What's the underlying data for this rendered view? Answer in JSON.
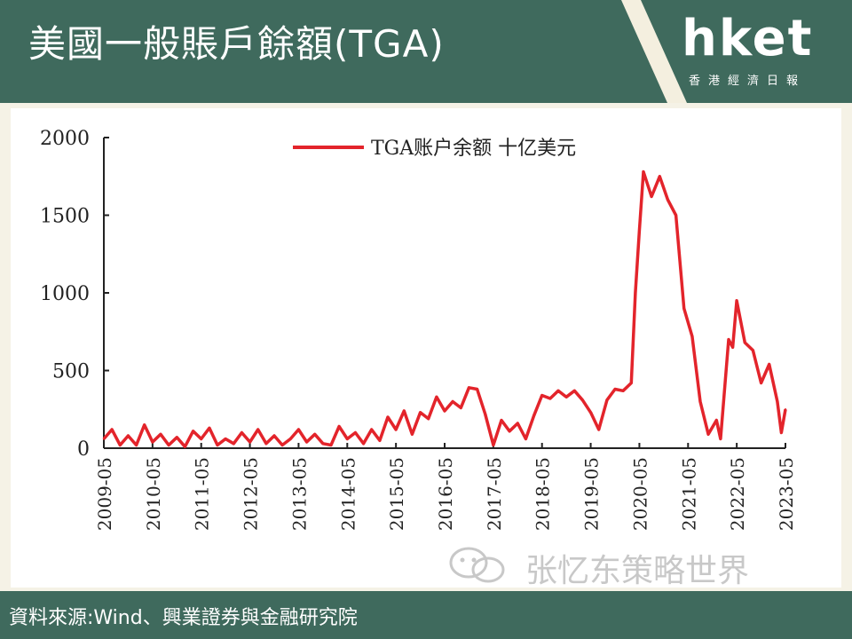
{
  "header": {
    "title": "美國一般賬戶餘額(TGA)",
    "logo_text": "hket",
    "logo_sub": "香港經濟日報",
    "bg_color": "#3f6a5d",
    "accent_color": "#f4efdf"
  },
  "footer": {
    "source": "資料來源:Wind、興業證券與金融研究院"
  },
  "watermark": {
    "text": "张忆东策略世界",
    "icon": "wechat-icon"
  },
  "chart_data": {
    "type": "line",
    "title": "",
    "xlabel": "",
    "ylabel": "",
    "legend_position": "top-center",
    "grid": false,
    "ylim": [
      0,
      2000
    ],
    "yticks": [
      0,
      500,
      1000,
      1500,
      2000
    ],
    "xlim": [
      "2009-05",
      "2023-05"
    ],
    "xticks": [
      "2009-05",
      "2010-05",
      "2011-05",
      "2012-05",
      "2013-05",
      "2014-05",
      "2015-05",
      "2016-05",
      "2017-05",
      "2018-05",
      "2019-05",
      "2020-05",
      "2021-05",
      "2022-05",
      "2023-05"
    ],
    "series": [
      {
        "name": "TGA账户余额 十亿美元",
        "color": "#e3242b",
        "points": [
          [
            "2009-05",
            60
          ],
          [
            "2009-07",
            120
          ],
          [
            "2009-09",
            20
          ],
          [
            "2009-11",
            80
          ],
          [
            "2010-01",
            20
          ],
          [
            "2010-03",
            150
          ],
          [
            "2010-05",
            40
          ],
          [
            "2010-07",
            90
          ],
          [
            "2010-09",
            20
          ],
          [
            "2010-11",
            70
          ],
          [
            "2011-01",
            10
          ],
          [
            "2011-03",
            110
          ],
          [
            "2011-05",
            60
          ],
          [
            "2011-07",
            130
          ],
          [
            "2011-09",
            20
          ],
          [
            "2011-11",
            60
          ],
          [
            "2012-01",
            30
          ],
          [
            "2012-03",
            100
          ],
          [
            "2012-05",
            40
          ],
          [
            "2012-07",
            120
          ],
          [
            "2012-09",
            30
          ],
          [
            "2012-11",
            80
          ],
          [
            "2013-01",
            20
          ],
          [
            "2013-03",
            60
          ],
          [
            "2013-05",
            120
          ],
          [
            "2013-07",
            40
          ],
          [
            "2013-09",
            90
          ],
          [
            "2013-11",
            30
          ],
          [
            "2014-01",
            20
          ],
          [
            "2014-03",
            140
          ],
          [
            "2014-05",
            60
          ],
          [
            "2014-07",
            100
          ],
          [
            "2014-09",
            30
          ],
          [
            "2014-11",
            120
          ],
          [
            "2015-01",
            50
          ],
          [
            "2015-03",
            200
          ],
          [
            "2015-05",
            120
          ],
          [
            "2015-07",
            240
          ],
          [
            "2015-09",
            90
          ],
          [
            "2015-11",
            230
          ],
          [
            "2016-01",
            190
          ],
          [
            "2016-03",
            330
          ],
          [
            "2016-05",
            240
          ],
          [
            "2016-07",
            300
          ],
          [
            "2016-09",
            260
          ],
          [
            "2016-11",
            390
          ],
          [
            "2017-01",
            380
          ],
          [
            "2017-03",
            220
          ],
          [
            "2017-05",
            20
          ],
          [
            "2017-07",
            180
          ],
          [
            "2017-09",
            110
          ],
          [
            "2017-11",
            160
          ],
          [
            "2018-01",
            60
          ],
          [
            "2018-03",
            210
          ],
          [
            "2018-05",
            340
          ],
          [
            "2018-07",
            320
          ],
          [
            "2018-09",
            370
          ],
          [
            "2018-11",
            330
          ],
          [
            "2019-01",
            370
          ],
          [
            "2019-03",
            310
          ],
          [
            "2019-05",
            230
          ],
          [
            "2019-07",
            120
          ],
          [
            "2019-09",
            310
          ],
          [
            "2019-11",
            380
          ],
          [
            "2020-01",
            370
          ],
          [
            "2020-03",
            420
          ],
          [
            "2020-04",
            1000
          ],
          [
            "2020-05",
            1400
          ],
          [
            "2020-06",
            1780
          ],
          [
            "2020-08",
            1620
          ],
          [
            "2020-10",
            1750
          ],
          [
            "2020-12",
            1600
          ],
          [
            "2021-02",
            1500
          ],
          [
            "2021-04",
            900
          ],
          [
            "2021-06",
            720
          ],
          [
            "2021-08",
            300
          ],
          [
            "2021-10",
            90
          ],
          [
            "2021-12",
            180
          ],
          [
            "2022-01",
            60
          ],
          [
            "2022-03",
            700
          ],
          [
            "2022-04",
            650
          ],
          [
            "2022-05",
            950
          ],
          [
            "2022-07",
            680
          ],
          [
            "2022-09",
            630
          ],
          [
            "2022-11",
            420
          ],
          [
            "2023-01",
            540
          ],
          [
            "2023-03",
            300
          ],
          [
            "2023-04",
            100
          ],
          [
            "2023-05",
            250
          ]
        ]
      }
    ]
  }
}
